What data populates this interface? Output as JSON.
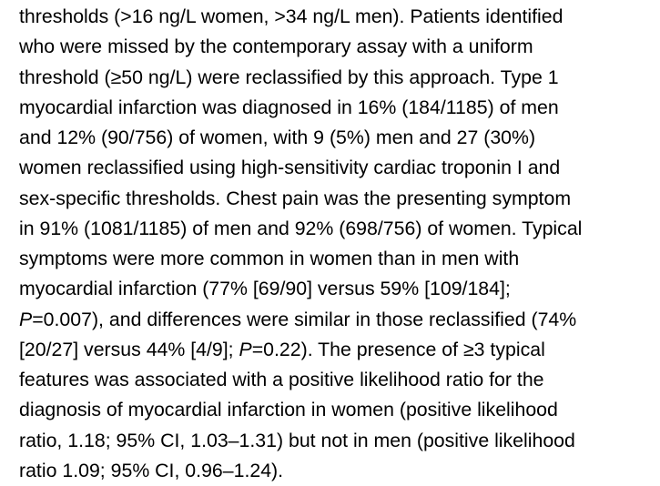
{
  "colors": {
    "background": "#ffffff",
    "text": "#000000"
  },
  "paragraph": {
    "full_text": "thresholds (>16 ng/L women, >34 ng/L men). Patients identified who were missed by the contemporary assay with a uniform threshold (≥50 ng/L) were reclassified by this approach. Type 1 myocardial infarction was diagnosed in 16% (184/1185) of men and 12% (90/756) of women, with 9 (5%) men and 27 (30%) women reclassified using high-sensitivity cardiac troponin I and sex-specific thresholds. Chest pain was the presenting symptom in 91% (1081/1185) of men and 92% (698/756) of women. Typical symptoms were more common in women than in men with myocardial infarction (77% [69/90] versus 59% [109/184]; P=0.007), and differences were similar in those reclassified (74% [20/27] versus 44% [4/9]; P=0.22). The presence of ≥3 typical features was associated with a positive likelihood ratio for the diagnosis of myocardial infarction in women (positive likelihood ratio, 1.18; 95% CI, 1.03–1.31) but not in men (positive likelihood ratio 1.09; 95% CI, 0.96–1.24).",
    "lines": [
      {
        "segments": [
          {
            "t": "thresholds (>16 ng/L women, >34 ng/L men). Patients identified",
            "i": false
          }
        ]
      },
      {
        "segments": [
          {
            "t": "who were missed by the contemporary assay with a uniform",
            "i": false
          }
        ]
      },
      {
        "segments": [
          {
            "t": "threshold (≥50 ng/L) were reclassified by this approach. Type 1",
            "i": false
          }
        ]
      },
      {
        "segments": [
          {
            "t": "myocardial infarction was diagnosed in 16% (184/1185) of men",
            "i": false
          }
        ]
      },
      {
        "segments": [
          {
            "t": "and 12% (90/756) of women, with 9 (5%) men and 27 (30%)",
            "i": false
          }
        ]
      },
      {
        "segments": [
          {
            "t": "women reclassified using high-sensitivity cardiac troponin I and",
            "i": false
          }
        ]
      },
      {
        "segments": [
          {
            "t": "sex-specific thresholds. Chest pain was the presenting symptom",
            "i": false
          }
        ]
      },
      {
        "segments": [
          {
            "t": "in 91% (1081/1185) of men and 92% (698/756) of women. Typical",
            "i": false
          }
        ]
      },
      {
        "segments": [
          {
            "t": "symptoms were more common in women than in men with",
            "i": false
          }
        ]
      },
      {
        "segments": [
          {
            "t": "myocardial infarction (77% [69/90] versus 59% [109/184];",
            "i": false
          }
        ]
      },
      {
        "segments": [
          {
            "t": "P",
            "i": true
          },
          {
            "t": "=0.007), and differences were similar in those reclassified (74%",
            "i": false
          }
        ]
      },
      {
        "segments": [
          {
            "t": "[20/27] versus 44% [4/9]; ",
            "i": false
          },
          {
            "t": "P",
            "i": true
          },
          {
            "t": "=0.22). The presence of ≥3 typical",
            "i": false
          }
        ]
      },
      {
        "segments": [
          {
            "t": "features was associated with a positive likelihood ratio for the",
            "i": false
          }
        ]
      },
      {
        "segments": [
          {
            "t": "diagnosis of myocardial infarction in women (positive likelihood",
            "i": false
          }
        ]
      },
      {
        "segments": [
          {
            "t": "ratio, 1.18; 95% CI, 1.03–1.31) but not in men (positive likelihood",
            "i": false
          }
        ]
      },
      {
        "segments": [
          {
            "t": "ratio 1.09; 95% CI, 0.96–1.24).",
            "i": false
          }
        ]
      }
    ]
  }
}
